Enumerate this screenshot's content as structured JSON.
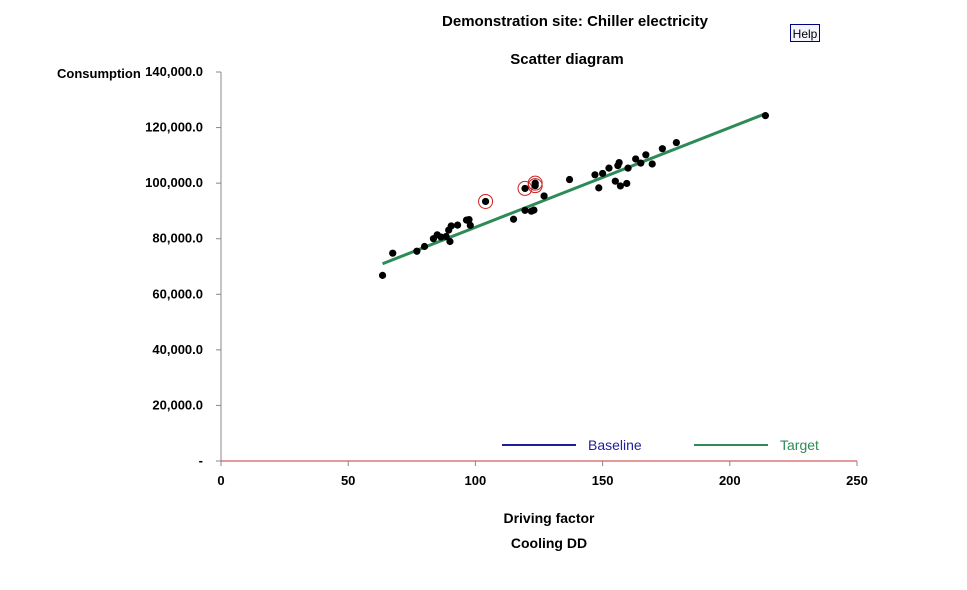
{
  "window": {
    "title": "Demonstration site: Chiller electricity",
    "help_label": "Help"
  },
  "chart_data": {
    "type": "scatter",
    "title": "Demonstration site: Chiller electricity",
    "subtitle": "Scatter diagram",
    "ylabel": "Consumption",
    "xlabel": "Driving factor",
    "xlabel_sub": "Cooling DD",
    "xlim": [
      0,
      250
    ],
    "ylim": [
      0,
      140000
    ],
    "x_ticks": [
      0,
      50,
      100,
      150,
      200,
      250
    ],
    "x_tick_labels": [
      "0",
      "50",
      "100",
      "150",
      "200",
      "250"
    ],
    "y_ticks": [
      0,
      20000,
      40000,
      60000,
      80000,
      100000,
      120000,
      140000
    ],
    "y_tick_labels": [
      "-",
      "20,000.0",
      "40,000.0",
      "60,000.0",
      "80,000.0",
      "100,000.0",
      "120,000.0",
      "140,000.0"
    ],
    "points": [
      {
        "x": 63.5,
        "y": 66800
      },
      {
        "x": 67.5,
        "y": 74800
      },
      {
        "x": 77,
        "y": 75500
      },
      {
        "x": 80,
        "y": 77200
      },
      {
        "x": 83.5,
        "y": 80000
      },
      {
        "x": 85,
        "y": 81400
      },
      {
        "x": 86.5,
        "y": 80600
      },
      {
        "x": 88.5,
        "y": 80800
      },
      {
        "x": 89.5,
        "y": 83100
      },
      {
        "x": 90,
        "y": 79000
      },
      {
        "x": 90.5,
        "y": 84600
      },
      {
        "x": 93,
        "y": 84900
      },
      {
        "x": 96.5,
        "y": 86700
      },
      {
        "x": 97.5,
        "y": 86900
      },
      {
        "x": 98,
        "y": 84800
      },
      {
        "x": 115,
        "y": 87000
      },
      {
        "x": 119.5,
        "y": 90200
      },
      {
        "x": 122,
        "y": 89900
      },
      {
        "x": 123,
        "y": 90300
      },
      {
        "x": 127,
        "y": 95400
      },
      {
        "x": 137,
        "y": 101300
      },
      {
        "x": 147,
        "y": 103000
      },
      {
        "x": 148.5,
        "y": 98300
      },
      {
        "x": 150,
        "y": 103500
      },
      {
        "x": 152.5,
        "y": 105400
      },
      {
        "x": 155,
        "y": 100700
      },
      {
        "x": 156,
        "y": 106300
      },
      {
        "x": 156.5,
        "y": 107400
      },
      {
        "x": 157,
        "y": 99000
      },
      {
        "x": 159.5,
        "y": 99900
      },
      {
        "x": 160,
        "y": 105400
      },
      {
        "x": 163,
        "y": 108700
      },
      {
        "x": 165,
        "y": 107200
      },
      {
        "x": 167,
        "y": 110200
      },
      {
        "x": 169.5,
        "y": 106900
      },
      {
        "x": 173.5,
        "y": 112400
      },
      {
        "x": 179,
        "y": 114600
      },
      {
        "x": 214,
        "y": 124300
      }
    ],
    "flagged_points": [
      {
        "x": 104,
        "y": 93400
      },
      {
        "x": 119.5,
        "y": 98100
      },
      {
        "x": 123.5,
        "y": 99100
      },
      {
        "x": 123.5,
        "y": 100000
      }
    ],
    "lines": [
      {
        "name": "Baseline",
        "color": "#1f1f9c",
        "points": []
      },
      {
        "name": "Target",
        "color": "#2e8b57",
        "points": [
          [
            63.5,
            71000
          ],
          [
            214,
            125000
          ]
        ]
      }
    ],
    "zero_line_color": "#cc3333",
    "flag_color": "#cc2222",
    "legend_position": "bottom-right",
    "grid": false
  }
}
